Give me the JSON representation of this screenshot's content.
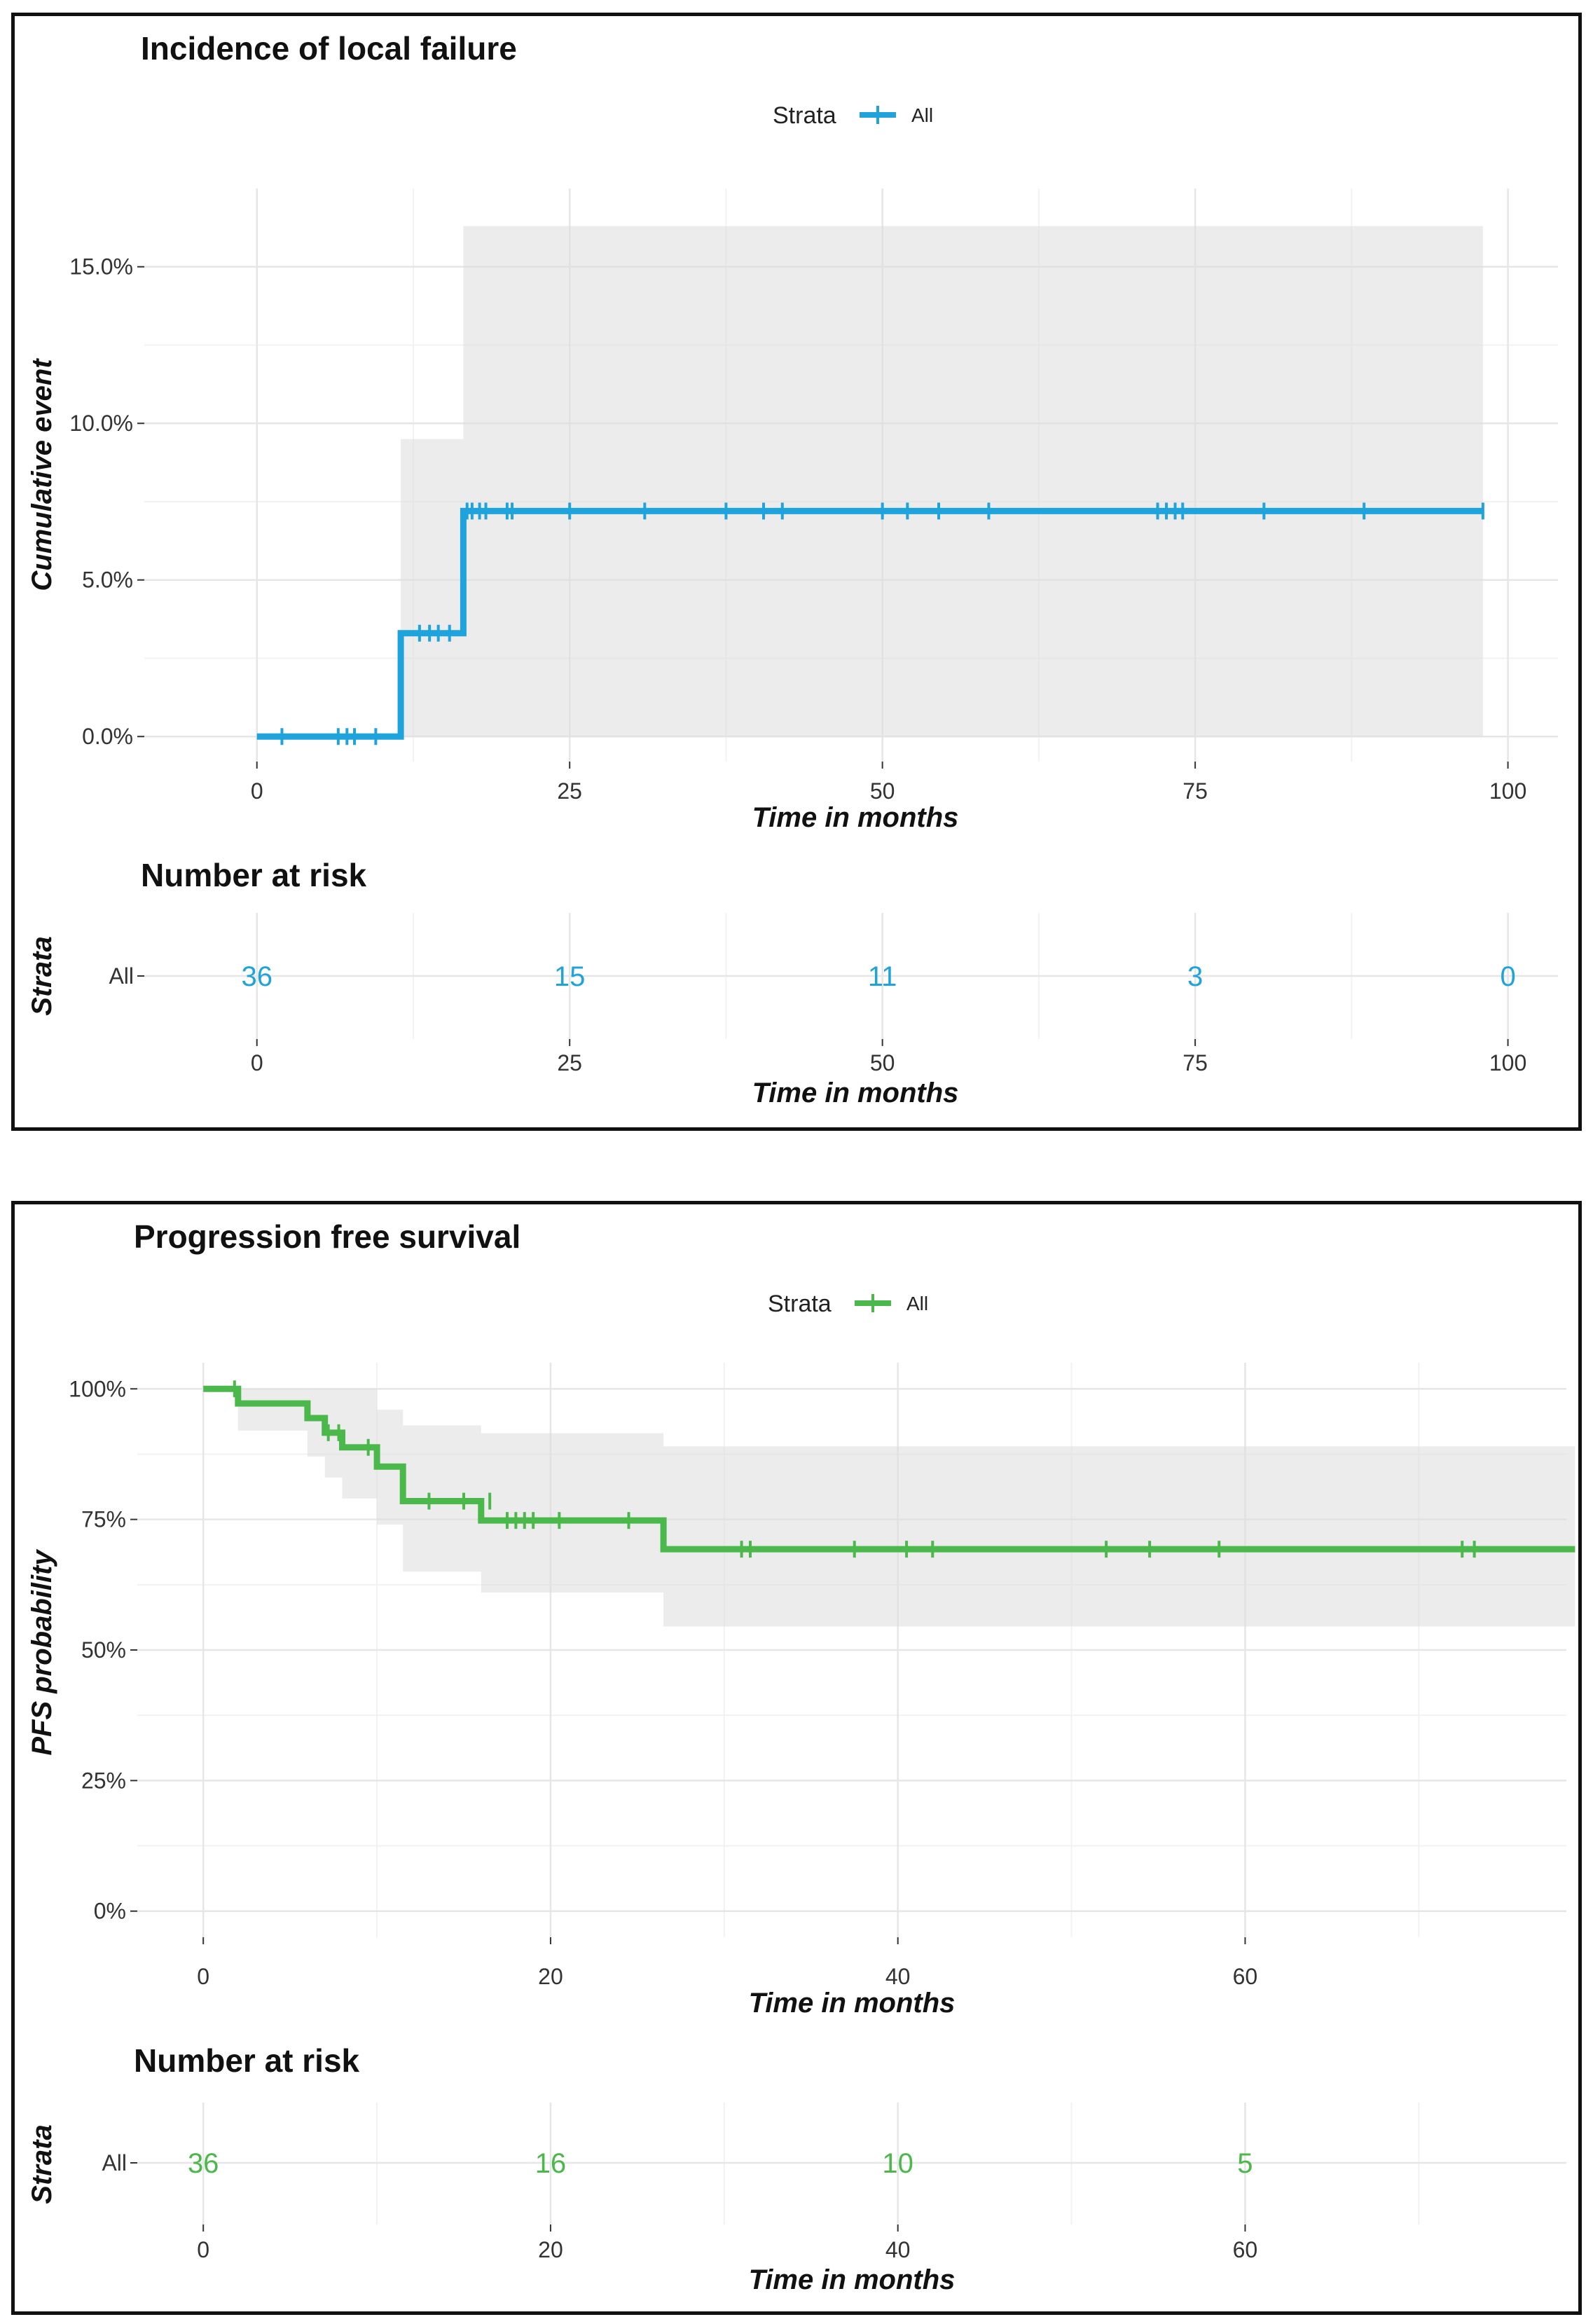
{
  "chart_data": [
    {
      "type": "line",
      "title": "Incidence of local failure",
      "legend_title": "Strata",
      "legend_entry": "All",
      "legend_position": "top-center",
      "color": "#1fa3dc",
      "ylabel": "Cumulative event",
      "xlabel": "Time in months",
      "xlim": [
        -9,
        104
      ],
      "ylim": [
        -0.8,
        17.5
      ],
      "xticks": [
        0,
        25,
        50,
        75,
        100
      ],
      "xtick_labels": [
        "0",
        "25",
        "50",
        "75",
        "100"
      ],
      "yticks": [
        0,
        5,
        10,
        15
      ],
      "ytick_labels": [
        "0.0%",
        "5.0%",
        "10.0%",
        "15.0%"
      ],
      "grid": true,
      "step": [
        [
          0,
          0
        ],
        [
          11.5,
          0
        ],
        [
          11.5,
          3.3
        ],
        [
          16.5,
          3.3
        ],
        [
          16.5,
          7.2
        ],
        [
          98,
          7.2
        ]
      ],
      "ci_band": [
        {
          "x0": 0,
          "x1": 11.5,
          "lo": 0,
          "hi": 0
        },
        {
          "x0": 11.5,
          "x1": 16.5,
          "lo": 0,
          "hi": 9.5
        },
        {
          "x0": 16.5,
          "x1": 98,
          "lo": 0,
          "hi": 16.3
        }
      ],
      "censor_marks": [
        [
          2,
          0
        ],
        [
          6.5,
          0
        ],
        [
          7.2,
          0
        ],
        [
          7.8,
          0
        ],
        [
          9.5,
          0
        ],
        [
          13,
          3.3
        ],
        [
          13.8,
          3.3
        ],
        [
          14.5,
          3.3
        ],
        [
          15.4,
          3.3
        ],
        [
          16.8,
          7.2
        ],
        [
          17.2,
          7.2
        ],
        [
          17.8,
          7.2
        ],
        [
          18.3,
          7.2
        ],
        [
          20,
          7.2
        ],
        [
          20.4,
          7.2
        ],
        [
          25,
          7.2
        ],
        [
          31,
          7.2
        ],
        [
          37.5,
          7.2
        ],
        [
          40.5,
          7.2
        ],
        [
          42,
          7.2
        ],
        [
          50,
          7.2
        ],
        [
          52,
          7.2
        ],
        [
          54.5,
          7.2
        ],
        [
          58.5,
          7.2
        ],
        [
          72,
          7.2
        ],
        [
          72.7,
          7.2
        ],
        [
          73.4,
          7.2
        ],
        [
          74,
          7.2
        ],
        [
          80.5,
          7.2
        ],
        [
          88.5,
          7.2
        ],
        [
          98,
          7.2
        ]
      ],
      "risk_table": {
        "title": "Number at risk",
        "ylabel": "Strata",
        "row_label": "All",
        "times": [
          0,
          25,
          50,
          75,
          100
        ],
        "tick_labels": [
          "0",
          "25",
          "50",
          "75",
          "100"
        ],
        "counts": [
          "36",
          "15",
          "11",
          "3",
          "0"
        ],
        "xlabel": "Time in months"
      }
    },
    {
      "type": "line",
      "title": "Progression free survival",
      "legend_title": "Strata",
      "legend_entry": "All",
      "legend_position": "top-center",
      "color": "#4ab84a",
      "ylabel": "PFS probability",
      "xlabel": "Time in months",
      "xlim": [
        -3.8,
        78.5
      ],
      "ylim": [
        -5,
        105
      ],
      "xticks": [
        0,
        20,
        40,
        60
      ],
      "xtick_labels": [
        "0",
        "20",
        "40",
        "60"
      ],
      "yticks": [
        0,
        25,
        50,
        75,
        100
      ],
      "ytick_labels": [
        "0%",
        "25%",
        "50%",
        "75%",
        "100%"
      ],
      "grid": true,
      "step": [
        [
          0,
          100
        ],
        [
          2,
          100
        ],
        [
          2,
          97.2
        ],
        [
          6,
          97.2
        ],
        [
          6,
          94.4
        ],
        [
          7,
          94.4
        ],
        [
          7,
          91.6
        ],
        [
          8,
          91.6
        ],
        [
          8,
          88.8
        ],
        [
          10,
          88.8
        ],
        [
          10,
          85.1
        ],
        [
          11.5,
          85.1
        ],
        [
          11.5,
          78.5
        ],
        [
          16,
          78.5
        ],
        [
          16,
          74.8
        ],
        [
          26.5,
          74.8
        ],
        [
          26.5,
          69.3
        ],
        [
          79,
          69.3
        ]
      ],
      "ci_band": [
        {
          "x0": 0,
          "x1": 2,
          "lo": 100,
          "hi": 100
        },
        {
          "x0": 2,
          "x1": 6,
          "lo": 92,
          "hi": 100
        },
        {
          "x0": 6,
          "x1": 7,
          "lo": 87,
          "hi": 100
        },
        {
          "x0": 7,
          "x1": 8,
          "lo": 83,
          "hi": 100
        },
        {
          "x0": 8,
          "x1": 10,
          "lo": 79,
          "hi": 100
        },
        {
          "x0": 10,
          "x1": 11.5,
          "lo": 74,
          "hi": 96
        },
        {
          "x0": 11.5,
          "x1": 16,
          "lo": 65,
          "hi": 93
        },
        {
          "x0": 16,
          "x1": 26.5,
          "lo": 61,
          "hi": 91.5
        },
        {
          "x0": 26.5,
          "x1": 79,
          "lo": 54.5,
          "hi": 89
        }
      ],
      "censor_marks": [
        [
          1.8,
          100
        ],
        [
          7.2,
          91.6
        ],
        [
          7.8,
          91.6
        ],
        [
          9.5,
          88.8
        ],
        [
          13,
          78.5
        ],
        [
          15,
          78.5
        ],
        [
          16.5,
          78.5
        ],
        [
          17.5,
          74.8
        ],
        [
          18,
          74.8
        ],
        [
          18.5,
          74.8
        ],
        [
          19,
          74.8
        ],
        [
          20.5,
          74.8
        ],
        [
          24.5,
          74.8
        ],
        [
          31,
          69.3
        ],
        [
          31.5,
          69.3
        ],
        [
          37.5,
          69.3
        ],
        [
          40.5,
          69.3
        ],
        [
          42,
          69.3
        ],
        [
          52,
          69.3
        ],
        [
          54.5,
          69.3
        ],
        [
          58.5,
          69.3
        ],
        [
          72.5,
          69.3
        ],
        [
          73.2,
          69.3
        ]
      ],
      "risk_table": {
        "title": "Number at risk",
        "ylabel": "Strata",
        "row_label": "All",
        "times": [
          0,
          20,
          40,
          60
        ],
        "tick_labels": [
          "0",
          "20",
          "40",
          "60"
        ],
        "counts": [
          "36",
          "16",
          "10",
          "5"
        ],
        "xlabel": "Time in months"
      }
    }
  ]
}
